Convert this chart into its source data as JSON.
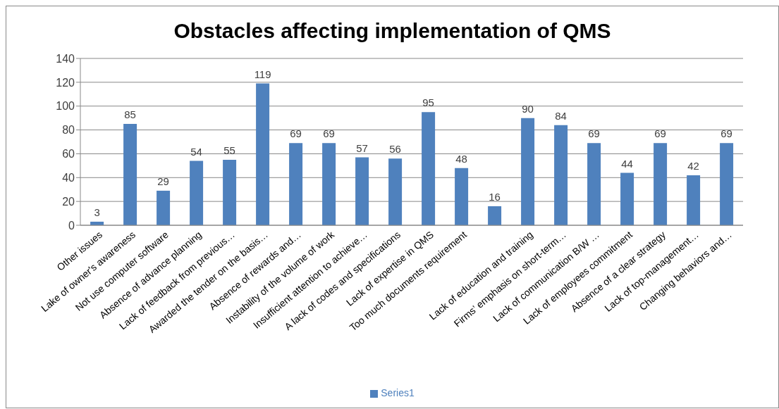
{
  "chart_data": {
    "type": "bar",
    "title": "Obstacles affecting implementation of QMS",
    "categories": [
      "Other issues",
      "Lake of owner's awareness",
      "Not use computer software",
      "Absence of advance planning",
      "Lack of feedback from previous…",
      "Awarded the tender on the basis…",
      "Absence of rewards and…",
      "Instability of the volume of work",
      "Insufficient attention to achieve…",
      "A lack of codes and specifications",
      "Lack of expertise in QMS",
      "Too much documents requirement",
      null,
      "Lack of education and training",
      "Firms’ emphasis on short-term…",
      "Lack of communication B/W …",
      "Lack of employees commitment",
      "Absence of a clear strategy",
      "Lack of top-management…",
      "Changing behaviors and…"
    ],
    "series": [
      {
        "name": "Series1",
        "color": "#4f81bd",
        "values": [
          3,
          85,
          29,
          54,
          55,
          119,
          69,
          69,
          57,
          56,
          95,
          48,
          16,
          90,
          84,
          69,
          44,
          69,
          42,
          69
        ]
      }
    ],
    "ylim": [
      0,
      140
    ],
    "yticks": [
      0,
      20,
      40,
      60,
      80,
      100,
      120,
      140
    ],
    "grid": "y",
    "legend": "bottom",
    "data_labels": true
  }
}
